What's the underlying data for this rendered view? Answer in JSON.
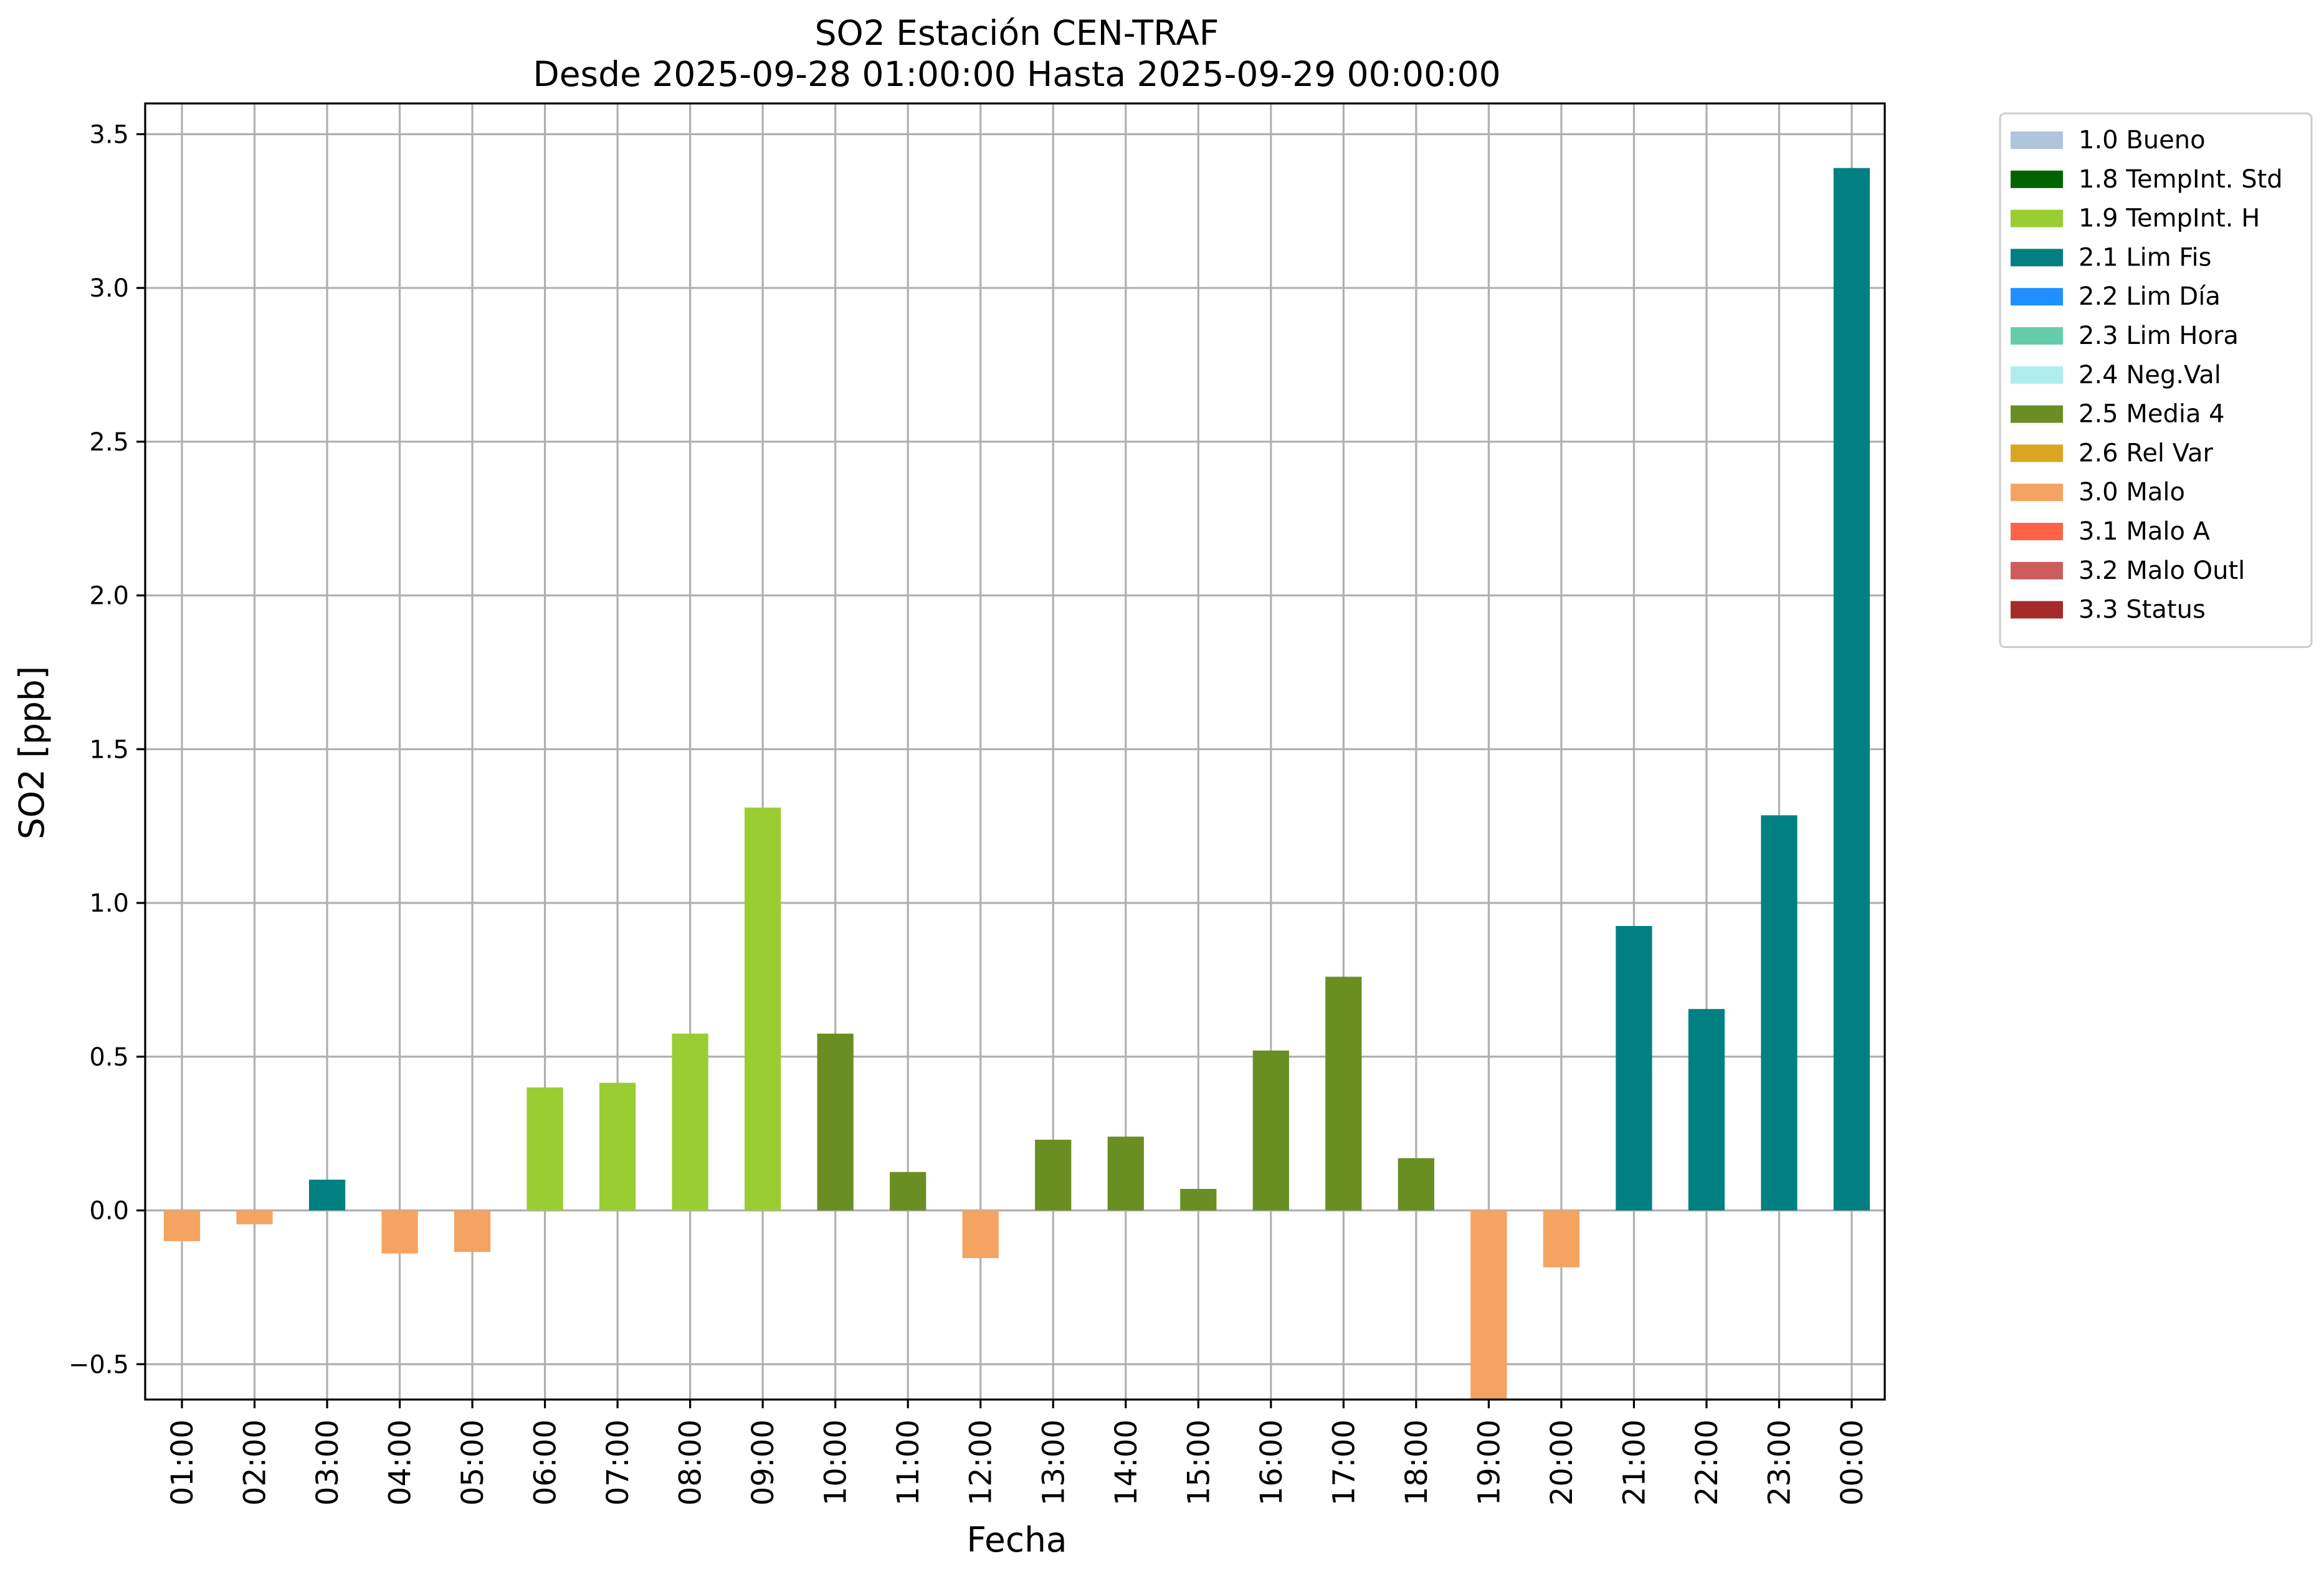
{
  "chart_data": {
    "type": "bar",
    "title": "SO2 Estación CEN-TRAF",
    "subtitle": "Desde 2025-09-28 01:00:00 Hasta 2025-09-29 00:00:00",
    "xlabel": "Fecha",
    "ylabel": "SO2 [ppb]",
    "ylim": [
      -0.615,
      3.6
    ],
    "yticks": [
      -0.5,
      0.0,
      0.5,
      1.0,
      1.5,
      2.0,
      2.5,
      3.0,
      3.5
    ],
    "ytick_labels": [
      "−0.5",
      "0.0",
      "0.5",
      "1.0",
      "1.5",
      "2.0",
      "2.5",
      "3.0",
      "3.5"
    ],
    "grid": true,
    "legend_position": "outside-right",
    "categories": [
      "01:00",
      "02:00",
      "03:00",
      "04:00",
      "05:00",
      "06:00",
      "07:00",
      "08:00",
      "09:00",
      "10:00",
      "11:00",
      "12:00",
      "13:00",
      "14:00",
      "15:00",
      "16:00",
      "17:00",
      "18:00",
      "19:00",
      "20:00",
      "21:00",
      "22:00",
      "23:00",
      "00:00"
    ],
    "values": [
      -0.1,
      -0.045,
      0.1,
      -0.14,
      -0.135,
      0.4,
      0.415,
      0.575,
      1.31,
      0.575,
      0.125,
      -0.155,
      0.23,
      0.24,
      0.07,
      0.52,
      0.76,
      0.17,
      -0.615,
      -0.185,
      0.925,
      0.655,
      1.285,
      3.39
    ],
    "flags": [
      "3.0 Malo",
      "3.0 Malo",
      "2.1 Lim Fis",
      "3.0 Malo",
      "3.0 Malo",
      "1.9 TempInt. H",
      "1.9 TempInt. H",
      "1.9 TempInt. H",
      "1.9 TempInt. H",
      "2.5 Media 4",
      "2.5 Media 4",
      "3.0 Malo",
      "2.5 Media 4",
      "2.5 Media 4",
      "2.5 Media 4",
      "2.5 Media 4",
      "2.5 Media 4",
      "2.5 Media 4",
      "3.0 Malo",
      "3.0 Malo",
      "2.1 Lim Fis",
      "2.1 Lim Fis",
      "2.1 Lim Fis",
      "2.1 Lim Fis"
    ],
    "legend": [
      {
        "label": "1.0 Bueno",
        "color": "#b0c4de"
      },
      {
        "label": "1.8 TempInt. Std",
        "color": "#006400"
      },
      {
        "label": "1.9 TempInt. H",
        "color": "#9acd32"
      },
      {
        "label": "2.1 Lim Fis",
        "color": "#008080"
      },
      {
        "label": "2.2 Lim Día",
        "color": "#1e90ff"
      },
      {
        "label": "2.3 Lim Hora",
        "color": "#66cdaa"
      },
      {
        "label": "2.4 Neg.Val",
        "color": "#afeeee"
      },
      {
        "label": "2.5 Media 4",
        "color": "#6b8e23"
      },
      {
        "label": "2.6 Rel Var",
        "color": "#daa520"
      },
      {
        "label": "3.0 Malo",
        "color": "#f4a460"
      },
      {
        "label": "3.1 Malo A",
        "color": "#ff6347"
      },
      {
        "label": "3.2 Malo Outl",
        "color": "#cd5c5c"
      },
      {
        "label": "3.3 Status",
        "color": "#a52a2a"
      }
    ]
  }
}
